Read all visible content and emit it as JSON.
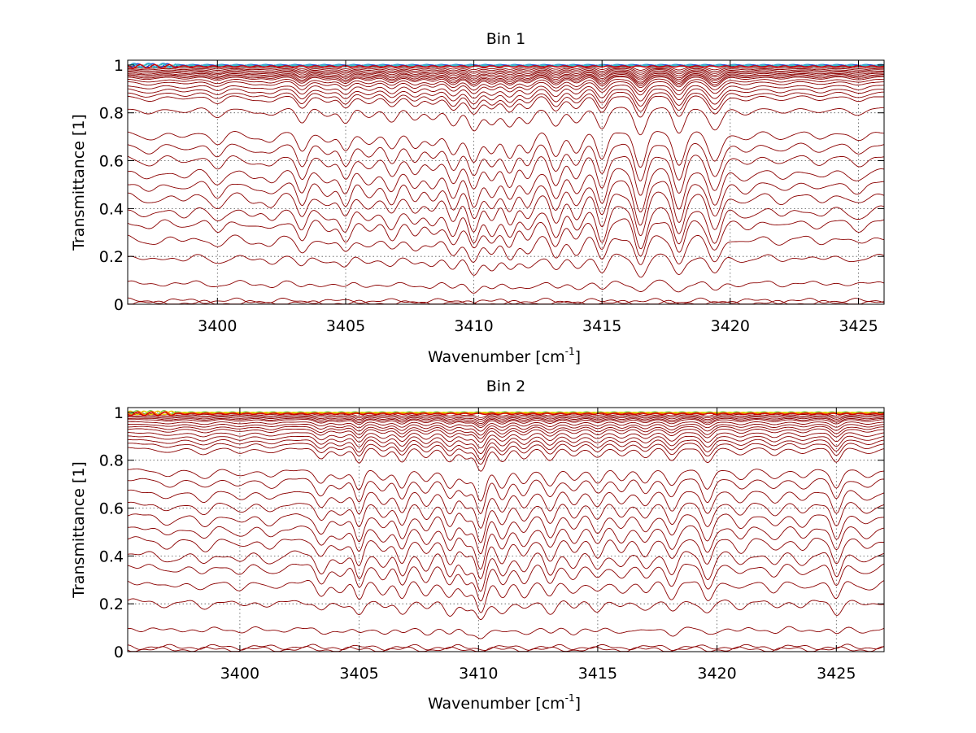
{
  "chart_data": [
    {
      "type": "line",
      "title": "Bin 1",
      "xlabel_main": "Wavenumber [cm",
      "xlabel_sup": "-1",
      "xlabel_tail": "]",
      "ylabel": "Transmittance [1]",
      "xlim": [
        3396.5,
        3426
      ],
      "ylim": [
        0,
        1.02
      ],
      "grid": true,
      "xticks": [
        3400,
        3405,
        3410,
        3415,
        3420,
        3425
      ],
      "xtick_labels": [
        "3400",
        "3405",
        "3410",
        "3415",
        "3420",
        "3425"
      ],
      "yticks": [
        0,
        0.2,
        0.4,
        0.6,
        0.8,
        1
      ],
      "ytick_labels": [
        "0",
        "0.2",
        "0.4",
        "0.6",
        "0.8",
        "1"
      ],
      "line_color": "#8b0000",
      "top_colors": [
        "#3a9bdc",
        "#1f4fd6",
        "#38c0c0",
        "#d40000"
      ],
      "baselines": [
        0.995,
        0.99,
        0.985,
        0.98,
        0.975,
        0.97,
        0.965,
        0.96,
        0.955,
        0.95,
        0.94,
        0.93,
        0.915,
        0.9,
        0.885,
        0.87,
        0.82,
        0.72,
        0.67,
        0.62,
        0.56,
        0.51,
        0.46,
        0.4,
        0.35,
        0.28,
        0.2,
        0.09,
        0.015,
        0.005
      ],
      "absorption_lines": [
        {
          "center": 3397.3,
          "depth": 0.08,
          "width": 0.35
        },
        {
          "center": 3398.7,
          "depth": 0.06,
          "width": 0.3
        },
        {
          "center": 3400.0,
          "depth": 0.12,
          "width": 0.25
        },
        {
          "center": 3401.4,
          "depth": 0.07,
          "width": 0.3
        },
        {
          "center": 3402.1,
          "depth": 0.09,
          "width": 0.25
        },
        {
          "center": 3403.3,
          "depth": 0.2,
          "width": 0.2
        },
        {
          "center": 3404.3,
          "depth": 0.1,
          "width": 0.25
        },
        {
          "center": 3405.0,
          "depth": 0.2,
          "width": 0.2
        },
        {
          "center": 3405.9,
          "depth": 0.12,
          "width": 0.25
        },
        {
          "center": 3406.8,
          "depth": 0.18,
          "width": 0.22
        },
        {
          "center": 3407.7,
          "depth": 0.16,
          "width": 0.22
        },
        {
          "center": 3408.4,
          "depth": 0.14,
          "width": 0.22
        },
        {
          "center": 3409.2,
          "depth": 0.24,
          "width": 0.22
        },
        {
          "center": 3410.0,
          "depth": 0.3,
          "width": 0.22
        },
        {
          "center": 3410.7,
          "depth": 0.22,
          "width": 0.22
        },
        {
          "center": 3411.4,
          "depth": 0.26,
          "width": 0.22
        },
        {
          "center": 3412.1,
          "depth": 0.2,
          "width": 0.22
        },
        {
          "center": 3413.2,
          "depth": 0.25,
          "width": 0.22
        },
        {
          "center": 3414.0,
          "depth": 0.2,
          "width": 0.22
        },
        {
          "center": 3415.0,
          "depth": 0.28,
          "width": 0.2
        },
        {
          "center": 3416.5,
          "depth": 0.35,
          "width": 0.22
        },
        {
          "center": 3418.0,
          "depth": 0.33,
          "width": 0.22
        },
        {
          "center": 3419.4,
          "depth": 0.3,
          "width": 0.25
        },
        {
          "center": 3420.6,
          "depth": 0.08,
          "width": 0.3
        },
        {
          "center": 3422.0,
          "depth": 0.07,
          "width": 0.3
        },
        {
          "center": 3423.5,
          "depth": 0.07,
          "width": 0.3
        },
        {
          "center": 3425.0,
          "depth": 0.09,
          "width": 0.3
        }
      ]
    },
    {
      "type": "line",
      "title": "Bin 2",
      "xlabel_main": "Wavenumber [cm",
      "xlabel_sup": "-1",
      "xlabel_tail": "]",
      "ylabel": "Transmittance [1]",
      "xlim": [
        3395.3,
        3427
      ],
      "ylim": [
        0,
        1.02
      ],
      "grid": true,
      "xticks": [
        3400,
        3405,
        3410,
        3415,
        3420,
        3425
      ],
      "xtick_labels": [
        "3400",
        "3405",
        "3410",
        "3415",
        "3420",
        "3425"
      ],
      "yticks": [
        0,
        0.2,
        0.4,
        0.6,
        0.8,
        1
      ],
      "ytick_labels": [
        "0",
        "0.2",
        "0.4",
        "0.6",
        "0.8",
        "1"
      ],
      "line_color": "#8b0000",
      "top_colors": [
        "#7fd64a",
        "#e6d000",
        "#ff7a00",
        "#d40000"
      ],
      "baselines": [
        0.995,
        0.99,
        0.985,
        0.98,
        0.975,
        0.97,
        0.96,
        0.95,
        0.94,
        0.93,
        0.915,
        0.9,
        0.885,
        0.87,
        0.85,
        0.76,
        0.72,
        0.67,
        0.62,
        0.57,
        0.52,
        0.47,
        0.41,
        0.36,
        0.29,
        0.21,
        0.095,
        0.02,
        0.01
      ],
      "absorption_lines": [
        {
          "center": 3397.0,
          "depth": 0.07,
          "width": 0.35
        },
        {
          "center": 3398.5,
          "depth": 0.09,
          "width": 0.3
        },
        {
          "center": 3400.0,
          "depth": 0.07,
          "width": 0.3
        },
        {
          "center": 3401.3,
          "depth": 0.08,
          "width": 0.3
        },
        {
          "center": 3403.4,
          "depth": 0.16,
          "width": 0.22
        },
        {
          "center": 3404.2,
          "depth": 0.1,
          "width": 0.25
        },
        {
          "center": 3405.0,
          "depth": 0.22,
          "width": 0.18
        },
        {
          "center": 3406.0,
          "depth": 0.12,
          "width": 0.22
        },
        {
          "center": 3406.8,
          "depth": 0.2,
          "width": 0.2
        },
        {
          "center": 3407.8,
          "depth": 0.14,
          "width": 0.22
        },
        {
          "center": 3408.8,
          "depth": 0.2,
          "width": 0.22
        },
        {
          "center": 3409.5,
          "depth": 0.16,
          "width": 0.22
        },
        {
          "center": 3410.1,
          "depth": 0.34,
          "width": 0.2
        },
        {
          "center": 3411.0,
          "depth": 0.2,
          "width": 0.22
        },
        {
          "center": 3411.9,
          "depth": 0.16,
          "width": 0.22
        },
        {
          "center": 3413.0,
          "depth": 0.18,
          "width": 0.22
        },
        {
          "center": 3414.0,
          "depth": 0.12,
          "width": 0.22
        },
        {
          "center": 3415.0,
          "depth": 0.14,
          "width": 0.22
        },
        {
          "center": 3416.0,
          "depth": 0.12,
          "width": 0.22
        },
        {
          "center": 3417.0,
          "depth": 0.14,
          "width": 0.22
        },
        {
          "center": 3418.1,
          "depth": 0.18,
          "width": 0.22
        },
        {
          "center": 3419.6,
          "depth": 0.22,
          "width": 0.22
        },
        {
          "center": 3421.0,
          "depth": 0.1,
          "width": 0.25
        },
        {
          "center": 3422.4,
          "depth": 0.1,
          "width": 0.25
        },
        {
          "center": 3423.6,
          "depth": 0.09,
          "width": 0.25
        },
        {
          "center": 3425.0,
          "depth": 0.2,
          "width": 0.2
        },
        {
          "center": 3426.3,
          "depth": 0.08,
          "width": 0.3
        }
      ]
    }
  ]
}
